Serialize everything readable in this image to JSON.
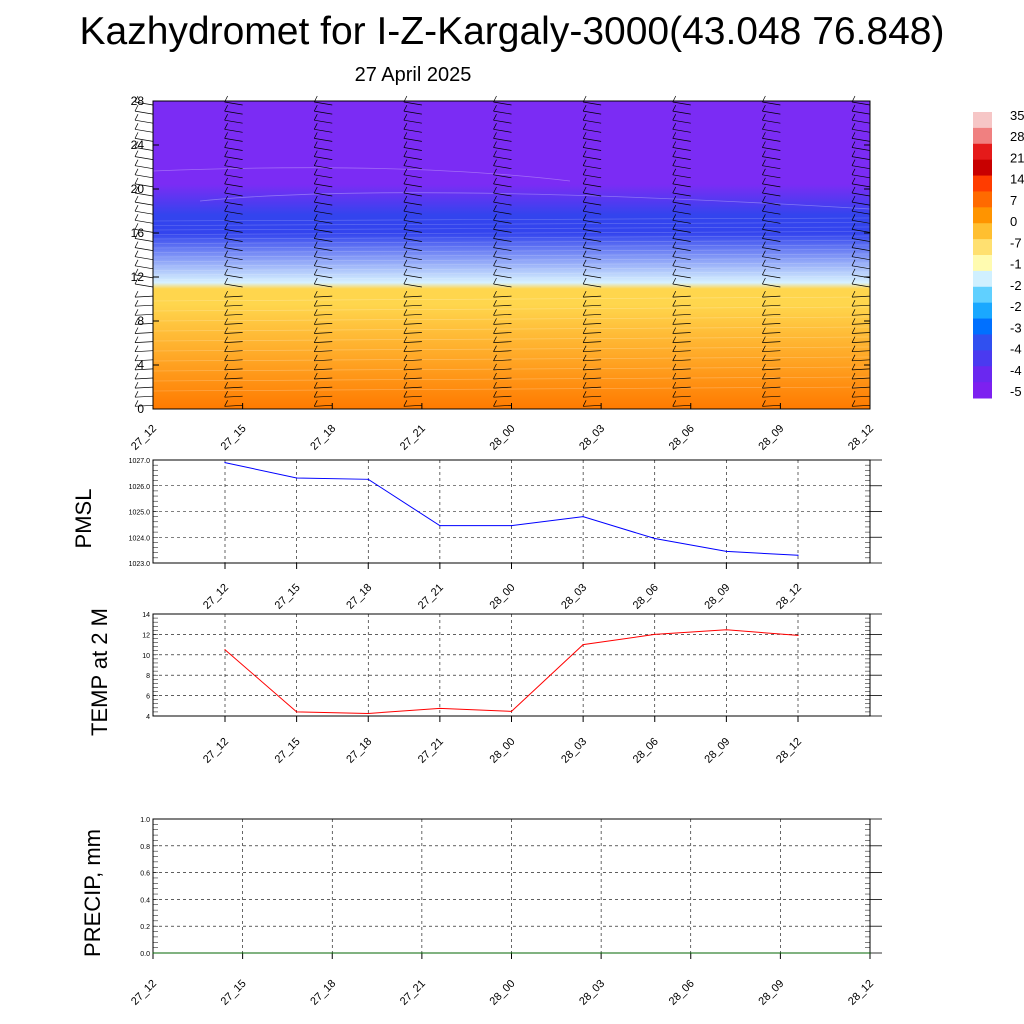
{
  "title": "Kazhydromet for I-Z-Kargaly-3000(43.048 76.848)",
  "subtitle": "27 April 2025",
  "chart_data": [
    {
      "type": "heatmap",
      "x_ticks": [
        "27_12",
        "27_15",
        "27_18",
        "27_21",
        "28_00",
        "28_03",
        "28_06",
        "28_09",
        "28_12"
      ],
      "y_ticks": [
        0,
        4,
        8,
        12,
        16,
        20,
        24,
        28
      ],
      "ylim": [
        0,
        28
      ],
      "colorbar_labels": [
        "35",
        "28",
        "21",
        "14",
        "7",
        "0",
        "-7",
        "-1",
        "-2",
        "-2",
        "-3",
        "-4",
        "-4",
        "-5"
      ],
      "colorbar_colors": [
        "#f6c6c6",
        "#f08080",
        "#e51a1a",
        "#c80000",
        "#ff3c00",
        "#ff6a00",
        "#ff9400",
        "#ffbf30",
        "#ffe070",
        "#fffbb0",
        "#d0f0ff",
        "#60d0ff",
        "#1aa8ff",
        "#0070ff",
        "#3050f0",
        "#4a3af0",
        "#6a28f0",
        "#7d20f0"
      ],
      "colors": {
        "band_top": "#7b2cf4",
        "band_blue": "#3344ee",
        "band_light": "#d8f2ff",
        "band_yellow": "#ffd64d",
        "band_orange": "#ff7a00"
      }
    },
    {
      "type": "line",
      "ylabel": "PMSL",
      "x": [
        "27_12",
        "27_15",
        "27_18",
        "27_21",
        "28_00",
        "28_03",
        "28_06",
        "28_09",
        "28_12"
      ],
      "series": [
        {
          "values": [
            1026.9,
            1026.3,
            1026.25,
            1024.45,
            1024.45,
            1024.8,
            1023.95,
            1023.45,
            1023.3
          ],
          "color": "#0000ff"
        }
      ],
      "ylim": [
        1023.0,
        1027.0
      ],
      "y_ticks": [
        "1023.0",
        "1024.0",
        "1025.0",
        "1026.0",
        "1027.0"
      ],
      "grid": true
    },
    {
      "type": "line",
      "ylabel": "TEMP at 2 M",
      "x": [
        "27_12",
        "27_15",
        "27_18",
        "27_21",
        "28_00",
        "28_03",
        "28_06",
        "28_09",
        "28_12"
      ],
      "series": [
        {
          "values": [
            10.5,
            4.4,
            4.25,
            4.75,
            4.45,
            11.0,
            12.0,
            12.45,
            11.9
          ],
          "color": "#ff0000"
        }
      ],
      "ylim": [
        4,
        14
      ],
      "y_ticks": [
        "4",
        "6",
        "8",
        "10",
        "12",
        "14"
      ],
      "grid": true
    },
    {
      "type": "line",
      "ylabel": "PRECIP, mm",
      "x": [
        "27_12",
        "27_15",
        "27_18",
        "27_21",
        "28_00",
        "28_03",
        "28_06",
        "28_09",
        "28_12"
      ],
      "series": [
        {
          "values": [
            0,
            0,
            0,
            0,
            0,
            0,
            0,
            0,
            0
          ],
          "color": "#006400"
        }
      ],
      "ylim": [
        0.0,
        1.0
      ],
      "y_ticks": [
        "0.0",
        "0.2",
        "0.4",
        "0.6",
        "0.8",
        "1.0"
      ],
      "grid": true
    }
  ]
}
